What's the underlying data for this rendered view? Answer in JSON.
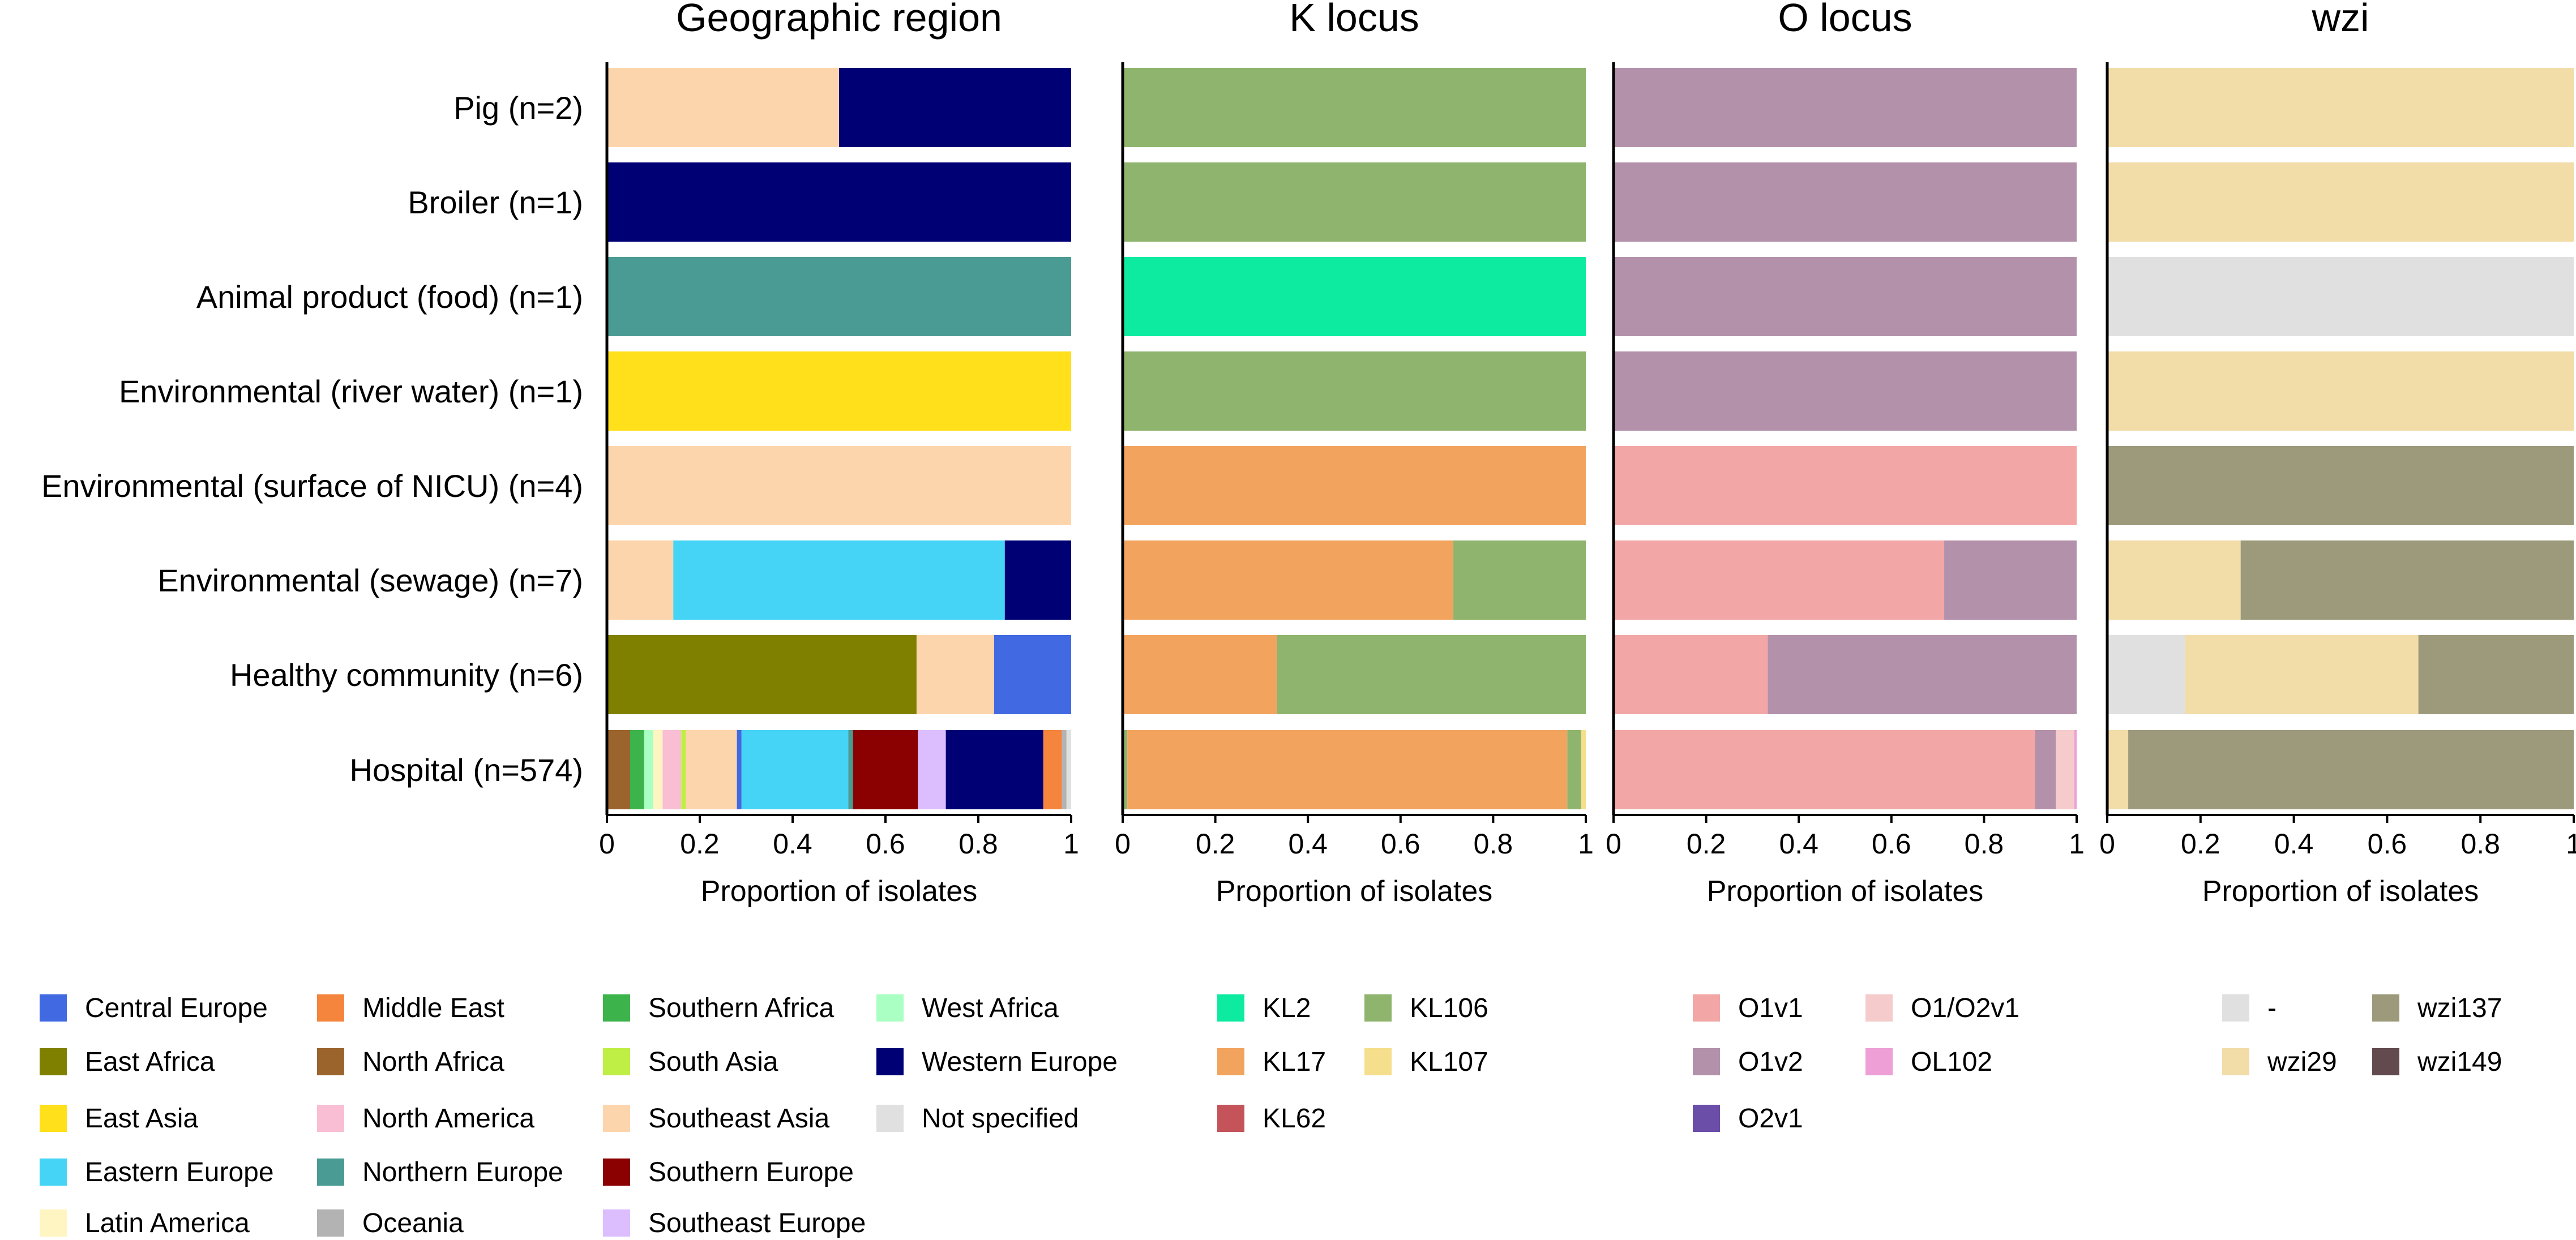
{
  "chart_data": {
    "type": "bar",
    "orientation": "horizontal",
    "stacked": true,
    "categories": [
      "Pig (n=2)",
      "Broiler (n=1)",
      "Animal product (food) (n=1)",
      "Environmental (river water) (n=1)",
      "Environmental (surface of NICU) (n=4)",
      "Environmental (sewage) (n=7)",
      "Healthy community (n=6)",
      "Hospital (n=574)"
    ],
    "xlabel": "Proportion of isolates",
    "xlim": [
      0,
      1
    ],
    "xticks": [
      "0",
      "0.2",
      "0.4",
      "0.6",
      "0.8",
      "1"
    ],
    "panels": [
      {
        "title": "Geographic region",
        "series_colors": {
          "Central Europe": "#4169e1",
          "East Africa": "#808000",
          "East Asia": "#ffe01a",
          "Eastern Europe": "#45d4f5",
          "Latin America": "#fff5c2",
          "Middle East": "#f5843c",
          "North Africa": "#9c642d",
          "North America": "#f9bed4",
          "Northern Europe": "#4a9b93",
          "Oceania": "#b3b3b3",
          "Southern Africa": "#3cb44b",
          "South Asia": "#bfef45",
          "Southeast Asia": "#fdd5ad",
          "Southern Europe": "#8b0000",
          "Southeast Europe": "#dcbeff",
          "West Africa": "#aaffc3",
          "Western Europe": "#000075",
          "Not specified": "#e0e0e0"
        },
        "bars": [
          [
            {
              "series": "Southeast Asia",
              "value": 0.5
            },
            {
              "series": "Western Europe",
              "value": 0.5
            }
          ],
          [
            {
              "series": "Western Europe",
              "value": 1.0
            }
          ],
          [
            {
              "series": "Northern Europe",
              "value": 1.0
            }
          ],
          [
            {
              "series": "East Asia",
              "value": 1.0
            }
          ],
          [
            {
              "series": "Southeast Asia",
              "value": 1.0
            }
          ],
          [
            {
              "series": "Southeast Asia",
              "value": 0.143
            },
            {
              "series": "Eastern Europe",
              "value": 0.714
            },
            {
              "series": "Western Europe",
              "value": 0.143
            }
          ],
          [
            {
              "series": "East Africa",
              "value": 0.667
            },
            {
              "series": "Southeast Asia",
              "value": 0.167
            },
            {
              "series": "Central Europe",
              "value": 0.166
            }
          ],
          [
            {
              "series": "North Africa",
              "value": 0.05
            },
            {
              "series": "Southern Africa",
              "value": 0.03
            },
            {
              "series": "West Africa",
              "value": 0.02
            },
            {
              "series": "Latin America",
              "value": 0.02
            },
            {
              "series": "North America",
              "value": 0.04
            },
            {
              "series": "South Asia",
              "value": 0.01
            },
            {
              "series": "Southeast Asia",
              "value": 0.11
            },
            {
              "series": "Central Europe",
              "value": 0.01
            },
            {
              "series": "Eastern Europe",
              "value": 0.23
            },
            {
              "series": "Northern Europe",
              "value": 0.01
            },
            {
              "series": "Southern Europe",
              "value": 0.14
            },
            {
              "series": "Southeast Europe",
              "value": 0.06
            },
            {
              "series": "Western Europe",
              "value": 0.21
            },
            {
              "series": "Middle East",
              "value": 0.04
            },
            {
              "series": "Oceania",
              "value": 0.01
            },
            {
              "series": "Not specified",
              "value": 0.01
            }
          ]
        ]
      },
      {
        "title": "K locus",
        "series_colors": {
          "KL2": "#0deba0",
          "KL17": "#f2a45f",
          "KL62": "#c4535a",
          "KL106": "#8eb46d",
          "KL107": "#f5df8c"
        },
        "bars": [
          [
            {
              "series": "KL106",
              "value": 1.0
            }
          ],
          [
            {
              "series": "KL106",
              "value": 1.0
            }
          ],
          [
            {
              "series": "KL2",
              "value": 1.0
            }
          ],
          [
            {
              "series": "KL106",
              "value": 1.0
            }
          ],
          [
            {
              "series": "KL17",
              "value": 1.0
            }
          ],
          [
            {
              "series": "KL17",
              "value": 0.714
            },
            {
              "series": "KL106",
              "value": 0.286
            }
          ],
          [
            {
              "series": "KL17",
              "value": 0.333
            },
            {
              "series": "KL106",
              "value": 0.667
            }
          ],
          [
            {
              "series": "KL106",
              "value": 0.01
            },
            {
              "series": "KL17",
              "value": 0.95
            },
            {
              "series": "KL106",
              "value": 0.03
            },
            {
              "series": "KL107",
              "value": 0.01
            }
          ]
        ]
      },
      {
        "title": "O locus",
        "series_colors": {
          "O1v1": "#f2a7a6",
          "O1v2": "#b391aa",
          "O2v1": "#6a4ea8",
          "O1/O2v1": "#f5cbcb",
          "OL102": "#ed9fd6"
        },
        "bars": [
          [
            {
              "series": "O1v2",
              "value": 1.0
            }
          ],
          [
            {
              "series": "O1v2",
              "value": 1.0
            }
          ],
          [
            {
              "series": "O1v2",
              "value": 1.0
            }
          ],
          [
            {
              "series": "O1v2",
              "value": 1.0
            }
          ],
          [
            {
              "series": "O1v1",
              "value": 1.0
            }
          ],
          [
            {
              "series": "O1v1",
              "value": 0.714
            },
            {
              "series": "O1v2",
              "value": 0.286
            }
          ],
          [
            {
              "series": "O1v1",
              "value": 0.333
            },
            {
              "series": "O1v2",
              "value": 0.667
            }
          ],
          [
            {
              "series": "O1v1",
              "value": 0.91
            },
            {
              "series": "O1v2",
              "value": 0.045
            },
            {
              "series": "O1/O2v1",
              "value": 0.04
            },
            {
              "series": "OL102",
              "value": 0.005
            }
          ]
        ]
      },
      {
        "title": "wzi",
        "series_colors": {
          "-": "#e0e0e0",
          "wzi29": "#f2dca8",
          "wzi137": "#9c9a7a",
          "wzi149": "#634a4f"
        },
        "bars": [
          [
            {
              "series": "wzi29",
              "value": 1.0
            }
          ],
          [
            {
              "series": "wzi29",
              "value": 1.0
            }
          ],
          [
            {
              "series": "-",
              "value": 1.0
            }
          ],
          [
            {
              "series": "wzi29",
              "value": 1.0
            }
          ],
          [
            {
              "series": "wzi137",
              "value": 1.0
            }
          ],
          [
            {
              "series": "wzi29",
              "value": 0.286
            },
            {
              "series": "wzi137",
              "value": 0.714
            }
          ],
          [
            {
              "series": "-",
              "value": 0.167
            },
            {
              "series": "wzi29",
              "value": 0.5
            },
            {
              "series": "wzi137",
              "value": 0.333
            }
          ],
          [
            {
              "series": "wzi29",
              "value": 0.045
            },
            {
              "series": "wzi137",
              "value": 0.955
            }
          ]
        ]
      }
    ],
    "legends": [
      {
        "panel": "Geographic region",
        "columns": [
          [
            "Central Europe",
            "East Africa",
            "East Asia",
            "Eastern Europe",
            "Latin America"
          ],
          [
            "Middle East",
            "North Africa",
            "North America",
            "Northern Europe",
            "Oceania"
          ],
          [
            "Southern Africa",
            "South Asia",
            "Southeast Asia",
            "Southern Europe",
            "Southeast Europe"
          ],
          [
            "West Africa",
            "Western Europe",
            "Not specified"
          ]
        ]
      },
      {
        "panel": "K locus",
        "columns": [
          [
            "KL2",
            "KL17",
            "KL62"
          ],
          [
            "KL106",
            "KL107"
          ]
        ]
      },
      {
        "panel": "O locus",
        "columns": [
          [
            "O1v1",
            "O1v2",
            "O2v1"
          ],
          [
            "O1/O2v1",
            "OL102"
          ]
        ]
      },
      {
        "panel": "wzi",
        "columns": [
          [
            "-",
            "wzi29"
          ],
          [
            "wzi137",
            "wzi149"
          ]
        ]
      }
    ]
  }
}
